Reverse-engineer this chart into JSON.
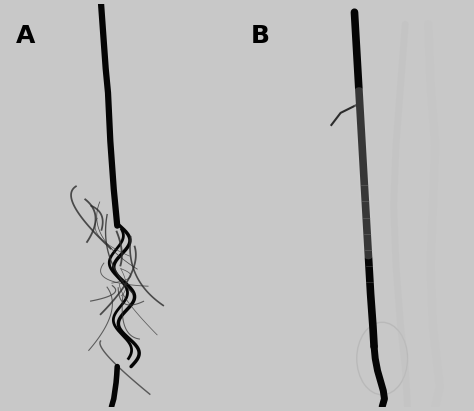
{
  "bg_color": "#c8c8c8",
  "panel_bg_A": "#b0b0b0",
  "panel_bg_B": "#b8b8b8",
  "label_A": "A",
  "label_B": "B",
  "label_fontsize": 18,
  "label_color": "black",
  "fig_width": 4.74,
  "fig_height": 4.11,
  "dpi": 100,
  "vessel_color_dark": "#050505",
  "vessel_color_mid": "#1a1a1a",
  "vessel_color_light": "#333333",
  "collateral_color": "#2a2a2a",
  "stent_color": "#e0e0e0",
  "bone_color": "#d0d0d0"
}
